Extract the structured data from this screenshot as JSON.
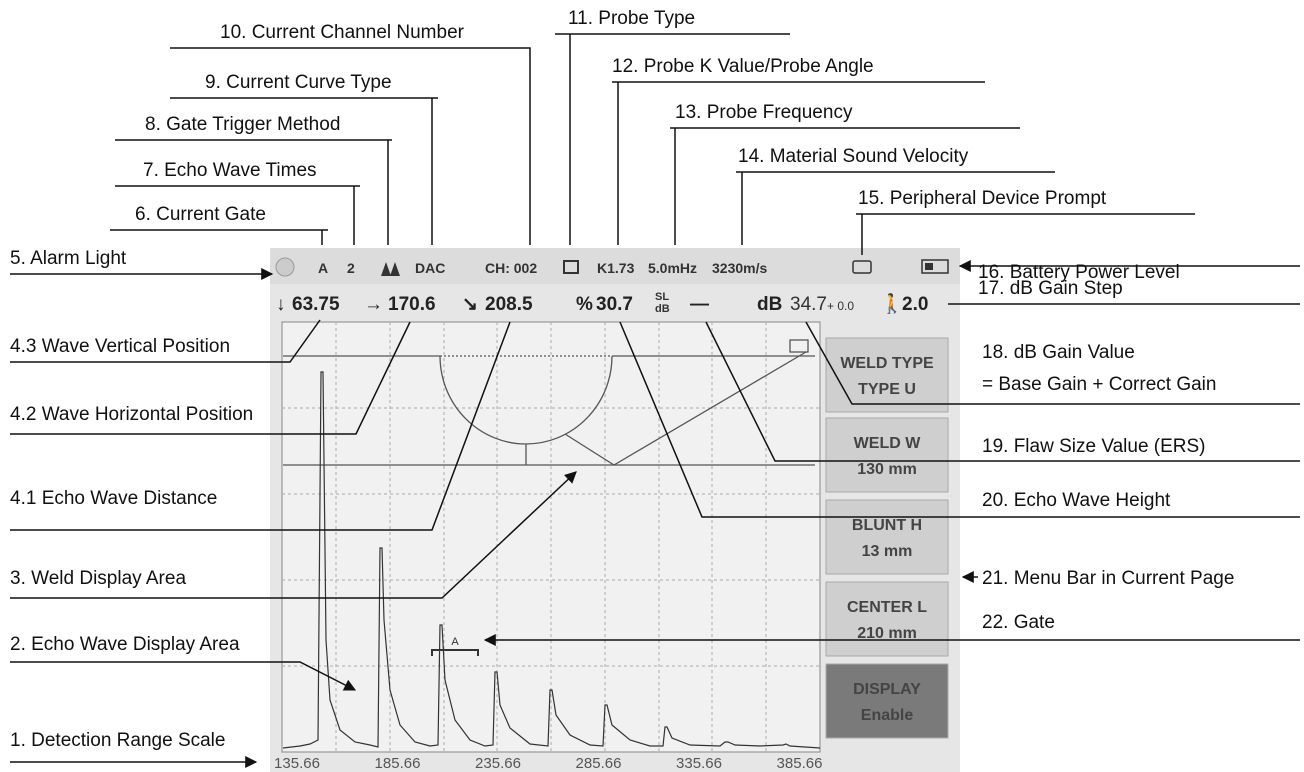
{
  "annotations": {
    "a10": "10. Current Channel Number",
    "a11": "11. Probe Type",
    "a9": "9. Current Curve Type",
    "a12": "12. Probe K Value/Probe Angle",
    "a8": "8. Gate Trigger Method",
    "a13": "13. Probe Frequency",
    "a7": "7. Echo Wave Times",
    "a14": "14. Material Sound Velocity",
    "a6": "6. Current Gate",
    "a15": "15. Peripheral Device Prompt",
    "a5": "5. Alarm Light",
    "a16": "16. Battery Power Level",
    "a17": "17. dB Gain Step",
    "a43": "4.3 Wave Vertical Position",
    "a18": [
      "18. dB Gain Value",
      "= Base Gain + Correct Gain"
    ],
    "a42": "4.2 Wave Horizontal Position",
    "a19": "19. Flaw Size Value (ERS)",
    "a41": "4.1 Echo Wave Distance",
    "a20": "20. Echo Wave Height",
    "a3": "3. Weld Display Area",
    "a21": "21. Menu Bar in Current Page",
    "a2": "2. Echo Wave Display Area",
    "a22": "22. Gate",
    "a1": "1. Detection Range Scale"
  },
  "status_bar": {
    "gate": "A",
    "echo_times": "2",
    "curve": "DAC",
    "channel": "CH: 002",
    "k_value": "K1.73",
    "frequency": "5.0mHz",
    "velocity": "3230m/s"
  },
  "readings": {
    "vertical": "63.75",
    "horizontal": "170.6",
    "distance": "208.5",
    "percent": "%",
    "height": "30.7",
    "sl_top": "SL",
    "sl_bottom": "dB",
    "flaw": "—",
    "db": "dB",
    "gain": "34.7",
    "correct": "+ 0.0",
    "step": "2.0"
  },
  "menu": [
    {
      "title": "WELD TYPE",
      "value": "TYPE U"
    },
    {
      "title": "WELD W",
      "value": "130 mm"
    },
    {
      "title": "BLUNT H",
      "value": "13 mm"
    },
    {
      "title": "CENTER L",
      "value": "210 mm"
    },
    {
      "title": "DISPLAY",
      "value": "Enable"
    }
  ],
  "gate_label": "A",
  "scale": [
    "135.66",
    "185.66",
    "235.66",
    "285.66",
    "335.66",
    "385.66"
  ]
}
